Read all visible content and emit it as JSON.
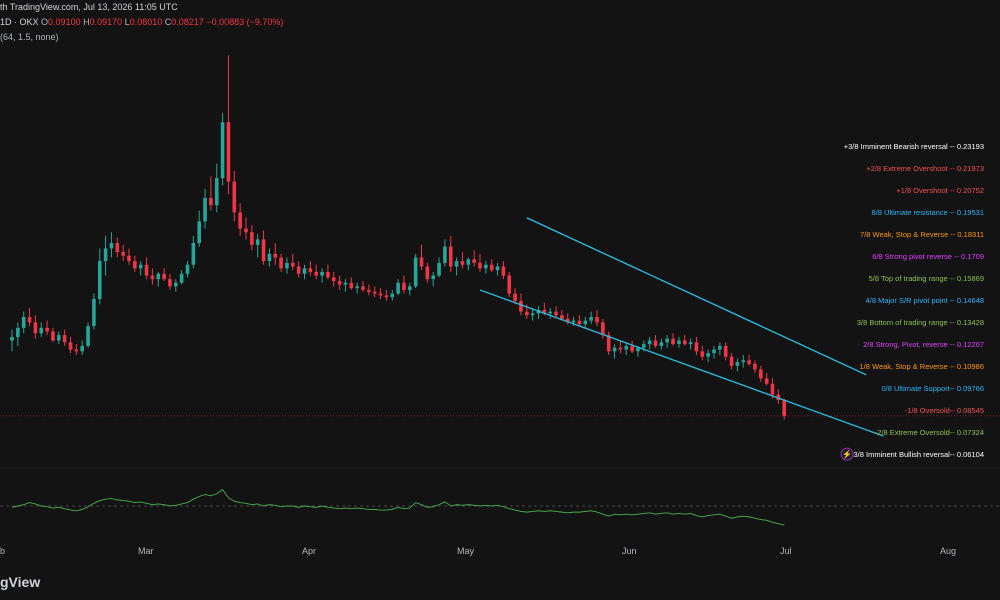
{
  "header": {
    "line1": "th TradingView.com, Jul 13, 2026 11:05 UTC",
    "line2_prefix": "1D · OKX",
    "ohlc": {
      "o_label": "O",
      "o": "0.09100",
      "h_label": "H",
      "h": "0.09170",
      "l_label": "L",
      "l": "0.08010",
      "c_label": "C",
      "c": "0.08217",
      "change": "−0.00883 (−9.70%)"
    },
    "line3": "(64, 1.5, none)"
  },
  "brand": "gView",
  "colors": {
    "up": "#26a69a",
    "down": "#f23645",
    "channel": "#2fb5d6",
    "rsi": "#4caf50"
  },
  "chart_data": [
    {
      "type": "candlestick",
      "x_tick_labels": [
        "b",
        "Mar",
        "Apr",
        "May",
        "Jun",
        "Jul",
        "Aug"
      ],
      "ylim": [
        0.055,
        0.285
      ],
      "last_price": 0.08217,
      "candles": [
        {
          "o": 0.124,
          "h": 0.13,
          "l": 0.118,
          "c": 0.126
        },
        {
          "o": 0.126,
          "h": 0.134,
          "l": 0.121,
          "c": 0.131
        },
        {
          "o": 0.131,
          "h": 0.14,
          "l": 0.128,
          "c": 0.137
        },
        {
          "o": 0.137,
          "h": 0.142,
          "l": 0.132,
          "c": 0.134
        },
        {
          "o": 0.134,
          "h": 0.138,
          "l": 0.125,
          "c": 0.128
        },
        {
          "o": 0.128,
          "h": 0.134,
          "l": 0.126,
          "c": 0.131
        },
        {
          "o": 0.131,
          "h": 0.135,
          "l": 0.127,
          "c": 0.129
        },
        {
          "o": 0.129,
          "h": 0.131,
          "l": 0.123,
          "c": 0.124
        },
        {
          "o": 0.124,
          "h": 0.129,
          "l": 0.122,
          "c": 0.127
        },
        {
          "o": 0.127,
          "h": 0.13,
          "l": 0.121,
          "c": 0.123
        },
        {
          "o": 0.123,
          "h": 0.126,
          "l": 0.117,
          "c": 0.119
        },
        {
          "o": 0.119,
          "h": 0.122,
          "l": 0.116,
          "c": 0.118
        },
        {
          "o": 0.118,
          "h": 0.124,
          "l": 0.116,
          "c": 0.121
        },
        {
          "o": 0.121,
          "h": 0.134,
          "l": 0.12,
          "c": 0.132
        },
        {
          "o": 0.132,
          "h": 0.15,
          "l": 0.13,
          "c": 0.147
        },
        {
          "o": 0.147,
          "h": 0.175,
          "l": 0.144,
          "c": 0.168
        },
        {
          "o": 0.168,
          "h": 0.182,
          "l": 0.16,
          "c": 0.175
        },
        {
          "o": 0.175,
          "h": 0.184,
          "l": 0.17,
          "c": 0.178
        },
        {
          "o": 0.178,
          "h": 0.181,
          "l": 0.17,
          "c": 0.173
        },
        {
          "o": 0.173,
          "h": 0.177,
          "l": 0.168,
          "c": 0.171
        },
        {
          "o": 0.171,
          "h": 0.175,
          "l": 0.166,
          "c": 0.168
        },
        {
          "o": 0.168,
          "h": 0.171,
          "l": 0.162,
          "c": 0.164
        },
        {
          "o": 0.164,
          "h": 0.168,
          "l": 0.16,
          "c": 0.166
        },
        {
          "o": 0.166,
          "h": 0.17,
          "l": 0.158,
          "c": 0.16
        },
        {
          "o": 0.16,
          "h": 0.164,
          "l": 0.155,
          "c": 0.158
        },
        {
          "o": 0.158,
          "h": 0.162,
          "l": 0.154,
          "c": 0.161
        },
        {
          "o": 0.161,
          "h": 0.164,
          "l": 0.157,
          "c": 0.158
        },
        {
          "o": 0.158,
          "h": 0.161,
          "l": 0.152,
          "c": 0.154
        },
        {
          "o": 0.154,
          "h": 0.158,
          "l": 0.151,
          "c": 0.156
        },
        {
          "o": 0.156,
          "h": 0.163,
          "l": 0.155,
          "c": 0.161
        },
        {
          "o": 0.161,
          "h": 0.168,
          "l": 0.159,
          "c": 0.166
        },
        {
          "o": 0.166,
          "h": 0.182,
          "l": 0.164,
          "c": 0.178
        },
        {
          "o": 0.178,
          "h": 0.196,
          "l": 0.176,
          "c": 0.19
        },
        {
          "o": 0.19,
          "h": 0.208,
          "l": 0.186,
          "c": 0.203
        },
        {
          "o": 0.203,
          "h": 0.215,
          "l": 0.196,
          "c": 0.199
        },
        {
          "o": 0.199,
          "h": 0.222,
          "l": 0.195,
          "c": 0.214
        },
        {
          "o": 0.214,
          "h": 0.25,
          "l": 0.21,
          "c": 0.245
        },
        {
          "o": 0.245,
          "h": 0.282,
          "l": 0.205,
          "c": 0.212
        },
        {
          "o": 0.212,
          "h": 0.218,
          "l": 0.19,
          "c": 0.195
        },
        {
          "o": 0.195,
          "h": 0.2,
          "l": 0.182,
          "c": 0.186
        },
        {
          "o": 0.186,
          "h": 0.192,
          "l": 0.18,
          "c": 0.184
        },
        {
          "o": 0.184,
          "h": 0.188,
          "l": 0.174,
          "c": 0.177
        },
        {
          "o": 0.177,
          "h": 0.183,
          "l": 0.17,
          "c": 0.18
        },
        {
          "o": 0.18,
          "h": 0.185,
          "l": 0.166,
          "c": 0.168
        },
        {
          "o": 0.168,
          "h": 0.175,
          "l": 0.165,
          "c": 0.172
        },
        {
          "o": 0.172,
          "h": 0.178,
          "l": 0.166,
          "c": 0.17
        },
        {
          "o": 0.17,
          "h": 0.172,
          "l": 0.162,
          "c": 0.164
        },
        {
          "o": 0.164,
          "h": 0.17,
          "l": 0.161,
          "c": 0.167
        },
        {
          "o": 0.167,
          "h": 0.172,
          "l": 0.163,
          "c": 0.165
        },
        {
          "o": 0.165,
          "h": 0.168,
          "l": 0.159,
          "c": 0.161
        },
        {
          "o": 0.161,
          "h": 0.166,
          "l": 0.158,
          "c": 0.164
        },
        {
          "o": 0.164,
          "h": 0.168,
          "l": 0.16,
          "c": 0.162
        },
        {
          "o": 0.162,
          "h": 0.166,
          "l": 0.158,
          "c": 0.16
        },
        {
          "o": 0.16,
          "h": 0.164,
          "l": 0.156,
          "c": 0.162
        },
        {
          "o": 0.162,
          "h": 0.166,
          "l": 0.158,
          "c": 0.159
        },
        {
          "o": 0.159,
          "h": 0.162,
          "l": 0.154,
          "c": 0.157
        },
        {
          "o": 0.157,
          "h": 0.16,
          "l": 0.152,
          "c": 0.155
        },
        {
          "o": 0.155,
          "h": 0.158,
          "l": 0.151,
          "c": 0.156
        },
        {
          "o": 0.156,
          "h": 0.159,
          "l": 0.152,
          "c": 0.153
        },
        {
          "o": 0.153,
          "h": 0.156,
          "l": 0.15,
          "c": 0.154
        },
        {
          "o": 0.154,
          "h": 0.157,
          "l": 0.151,
          "c": 0.152
        },
        {
          "o": 0.152,
          "h": 0.155,
          "l": 0.149,
          "c": 0.151
        },
        {
          "o": 0.151,
          "h": 0.154,
          "l": 0.148,
          "c": 0.15
        },
        {
          "o": 0.15,
          "h": 0.153,
          "l": 0.147,
          "c": 0.149
        },
        {
          "o": 0.149,
          "h": 0.152,
          "l": 0.146,
          "c": 0.148
        },
        {
          "o": 0.148,
          "h": 0.152,
          "l": 0.146,
          "c": 0.15
        },
        {
          "o": 0.15,
          "h": 0.158,
          "l": 0.149,
          "c": 0.156
        },
        {
          "o": 0.156,
          "h": 0.16,
          "l": 0.15,
          "c": 0.152
        },
        {
          "o": 0.152,
          "h": 0.156,
          "l": 0.149,
          "c": 0.154
        },
        {
          "o": 0.154,
          "h": 0.172,
          "l": 0.153,
          "c": 0.17
        },
        {
          "o": 0.17,
          "h": 0.177,
          "l": 0.163,
          "c": 0.165
        },
        {
          "o": 0.165,
          "h": 0.167,
          "l": 0.156,
          "c": 0.158
        },
        {
          "o": 0.158,
          "h": 0.162,
          "l": 0.154,
          "c": 0.16
        },
        {
          "o": 0.16,
          "h": 0.17,
          "l": 0.159,
          "c": 0.167
        },
        {
          "o": 0.167,
          "h": 0.18,
          "l": 0.165,
          "c": 0.176
        },
        {
          "o": 0.176,
          "h": 0.182,
          "l": 0.162,
          "c": 0.165
        },
        {
          "o": 0.165,
          "h": 0.17,
          "l": 0.16,
          "c": 0.168
        },
        {
          "o": 0.168,
          "h": 0.173,
          "l": 0.164,
          "c": 0.166
        },
        {
          "o": 0.166,
          "h": 0.17,
          "l": 0.163,
          "c": 0.169
        },
        {
          "o": 0.169,
          "h": 0.174,
          "l": 0.165,
          "c": 0.167
        },
        {
          "o": 0.167,
          "h": 0.172,
          "l": 0.162,
          "c": 0.164
        },
        {
          "o": 0.164,
          "h": 0.168,
          "l": 0.161,
          "c": 0.166
        },
        {
          "o": 0.166,
          "h": 0.169,
          "l": 0.162,
          "c": 0.163
        },
        {
          "o": 0.163,
          "h": 0.167,
          "l": 0.16,
          "c": 0.165
        },
        {
          "o": 0.165,
          "h": 0.168,
          "l": 0.158,
          "c": 0.16
        },
        {
          "o": 0.16,
          "h": 0.162,
          "l": 0.148,
          "c": 0.15
        },
        {
          "o": 0.15,
          "h": 0.153,
          "l": 0.144,
          "c": 0.146
        },
        {
          "o": 0.146,
          "h": 0.15,
          "l": 0.138,
          "c": 0.14
        },
        {
          "o": 0.14,
          "h": 0.144,
          "l": 0.136,
          "c": 0.138
        },
        {
          "o": 0.138,
          "h": 0.142,
          "l": 0.135,
          "c": 0.139
        },
        {
          "o": 0.139,
          "h": 0.143,
          "l": 0.136,
          "c": 0.141
        },
        {
          "o": 0.141,
          "h": 0.145,
          "l": 0.138,
          "c": 0.139
        },
        {
          "o": 0.139,
          "h": 0.142,
          "l": 0.136,
          "c": 0.14
        },
        {
          "o": 0.14,
          "h": 0.143,
          "l": 0.137,
          "c": 0.138
        },
        {
          "o": 0.138,
          "h": 0.141,
          "l": 0.135,
          "c": 0.136
        },
        {
          "o": 0.136,
          "h": 0.139,
          "l": 0.133,
          "c": 0.134
        },
        {
          "o": 0.134,
          "h": 0.137,
          "l": 0.132,
          "c": 0.135
        },
        {
          "o": 0.135,
          "h": 0.138,
          "l": 0.132,
          "c": 0.133
        },
        {
          "o": 0.133,
          "h": 0.137,
          "l": 0.131,
          "c": 0.135
        },
        {
          "o": 0.135,
          "h": 0.14,
          "l": 0.133,
          "c": 0.137
        },
        {
          "o": 0.137,
          "h": 0.141,
          "l": 0.132,
          "c": 0.134
        },
        {
          "o": 0.134,
          "h": 0.136,
          "l": 0.125,
          "c": 0.127
        },
        {
          "o": 0.127,
          "h": 0.129,
          "l": 0.116,
          "c": 0.118
        },
        {
          "o": 0.118,
          "h": 0.122,
          "l": 0.114,
          "c": 0.12
        },
        {
          "o": 0.12,
          "h": 0.124,
          "l": 0.117,
          "c": 0.119
        },
        {
          "o": 0.119,
          "h": 0.123,
          "l": 0.116,
          "c": 0.121
        },
        {
          "o": 0.121,
          "h": 0.124,
          "l": 0.117,
          "c": 0.118
        },
        {
          "o": 0.118,
          "h": 0.121,
          "l": 0.115,
          "c": 0.12
        },
        {
          "o": 0.12,
          "h": 0.124,
          "l": 0.118,
          "c": 0.122
        },
        {
          "o": 0.122,
          "h": 0.126,
          "l": 0.119,
          "c": 0.124
        },
        {
          "o": 0.124,
          "h": 0.127,
          "l": 0.12,
          "c": 0.121
        },
        {
          "o": 0.121,
          "h": 0.125,
          "l": 0.119,
          "c": 0.123
        },
        {
          "o": 0.123,
          "h": 0.127,
          "l": 0.12,
          "c": 0.125
        },
        {
          "o": 0.125,
          "h": 0.128,
          "l": 0.121,
          "c": 0.122
        },
        {
          "o": 0.122,
          "h": 0.126,
          "l": 0.12,
          "c": 0.124
        },
        {
          "o": 0.124,
          "h": 0.127,
          "l": 0.121,
          "c": 0.122
        },
        {
          "o": 0.122,
          "h": 0.125,
          "l": 0.119,
          "c": 0.123
        },
        {
          "o": 0.123,
          "h": 0.126,
          "l": 0.116,
          "c": 0.118
        },
        {
          "o": 0.118,
          "h": 0.121,
          "l": 0.113,
          "c": 0.115
        },
        {
          "o": 0.115,
          "h": 0.119,
          "l": 0.112,
          "c": 0.117
        },
        {
          "o": 0.117,
          "h": 0.121,
          "l": 0.114,
          "c": 0.119
        },
        {
          "o": 0.119,
          "h": 0.123,
          "l": 0.116,
          "c": 0.121
        },
        {
          "o": 0.121,
          "h": 0.123,
          "l": 0.113,
          "c": 0.115
        },
        {
          "o": 0.115,
          "h": 0.117,
          "l": 0.108,
          "c": 0.11
        },
        {
          "o": 0.11,
          "h": 0.114,
          "l": 0.107,
          "c": 0.112
        },
        {
          "o": 0.112,
          "h": 0.116,
          "l": 0.109,
          "c": 0.113
        },
        {
          "o": 0.113,
          "h": 0.116,
          "l": 0.11,
          "c": 0.111
        },
        {
          "o": 0.111,
          "h": 0.113,
          "l": 0.106,
          "c": 0.108
        },
        {
          "o": 0.108,
          "h": 0.11,
          "l": 0.101,
          "c": 0.103
        },
        {
          "o": 0.103,
          "h": 0.106,
          "l": 0.099,
          "c": 0.1
        },
        {
          "o": 0.1,
          "h": 0.103,
          "l": 0.092,
          "c": 0.094
        },
        {
          "o": 0.094,
          "h": 0.097,
          "l": 0.089,
          "c": 0.091
        },
        {
          "o": 0.091,
          "h": 0.0917,
          "l": 0.0801,
          "c": 0.08217
        }
      ],
      "murrey_levels": [
        {
          "label": "+3/8 Imminent Bearish reversal -- 0.23193",
          "value": 0.23193,
          "color": "#ffffff"
        },
        {
          "label": "+2/8 Extreme Overshoot -- 0.21973",
          "value": 0.21973,
          "color": "#ef5350"
        },
        {
          "label": "+1/8 Overshoot -- 0.20752",
          "value": 0.20752,
          "color": "#ef5350"
        },
        {
          "label": "8/8 Ultimate resistance -- 0.19531",
          "value": 0.19531,
          "color": "#29b6f6"
        },
        {
          "label": "7/8 Weak, Stop & Reverse -- 0.18311",
          "value": 0.18311,
          "color": "#ff9800"
        },
        {
          "label": "6/8 Strong pivot reverse -- 0.1709",
          "value": 0.1709,
          "color": "#e040fb"
        },
        {
          "label": "5/8 Top of trading range -- 0.15869",
          "value": 0.15869,
          "color": "#8bc34a"
        },
        {
          "label": "4/8 Major S/R pivot point -- 0.14648",
          "value": 0.14648,
          "color": "#29b6f6"
        },
        {
          "label": "3/8 Bottom of trading range -- 0.13428",
          "value": 0.13428,
          "color": "#8bc34a"
        },
        {
          "label": "2/8 Strong, Pivot, reverse -- 0.12207",
          "value": 0.12207,
          "color": "#e040fb"
        },
        {
          "label": "1/8 Weak, Stop & Reverse -- 0.10986",
          "value": 0.10986,
          "color": "#ff9800"
        },
        {
          "label": "0/8 Ultimate Support-- 0.09766",
          "value": 0.09766,
          "color": "#29b6f6"
        },
        {
          "label": "-1/8 Oversold-- 0.08545",
          "value": 0.08545,
          "color": "#ef5350"
        },
        {
          "label": "-2/8 Extreme Oversold-- 0.07324",
          "value": 0.07324,
          "color": "#8bc34a"
        },
        {
          "label": "-3/8 Imminent Bullish reversal-- 0.06104",
          "value": 0.06104,
          "color": "#ffffff"
        }
      ],
      "channel": {
        "upper": [
          {
            "i": 88,
            "v": 0.192
          },
          {
            "i": 146,
            "v": 0.105
          }
        ],
        "lower": [
          {
            "i": 80,
            "v": 0.152
          },
          {
            "i": 149,
            "v": 0.071
          }
        ]
      }
    },
    {
      "type": "line",
      "name": "",
      "ylim": [
        0,
        100
      ],
      "midline": 50,
      "values": [
        48,
        50,
        52,
        55,
        53,
        50,
        49,
        47,
        48,
        46,
        44,
        43,
        45,
        49,
        54,
        58,
        60,
        61,
        59,
        58,
        57,
        55,
        56,
        54,
        52,
        53,
        52,
        50,
        51,
        53,
        55,
        60,
        64,
        67,
        65,
        68,
        74,
        62,
        57,
        55,
        54,
        52,
        53,
        50,
        52,
        51,
        49,
        50,
        50,
        48,
        50,
        49,
        48,
        50,
        48,
        47,
        46,
        47,
        46,
        47,
        46,
        45,
        45,
        44,
        44,
        45,
        48,
        46,
        47,
        55,
        52,
        48,
        49,
        52,
        56,
        50,
        52,
        51,
        52,
        51,
        50,
        51,
        50,
        51,
        49,
        46,
        44,
        42,
        41,
        42,
        43,
        42,
        43,
        42,
        41,
        40,
        41,
        41,
        42,
        43,
        41,
        38,
        35,
        38,
        37,
        38,
        37,
        38,
        39,
        40,
        38,
        39,
        40,
        38,
        39,
        38,
        39,
        36,
        34,
        36,
        37,
        38,
        35,
        32,
        34,
        35,
        34,
        32,
        30,
        29,
        26,
        24,
        22
      ]
    }
  ]
}
